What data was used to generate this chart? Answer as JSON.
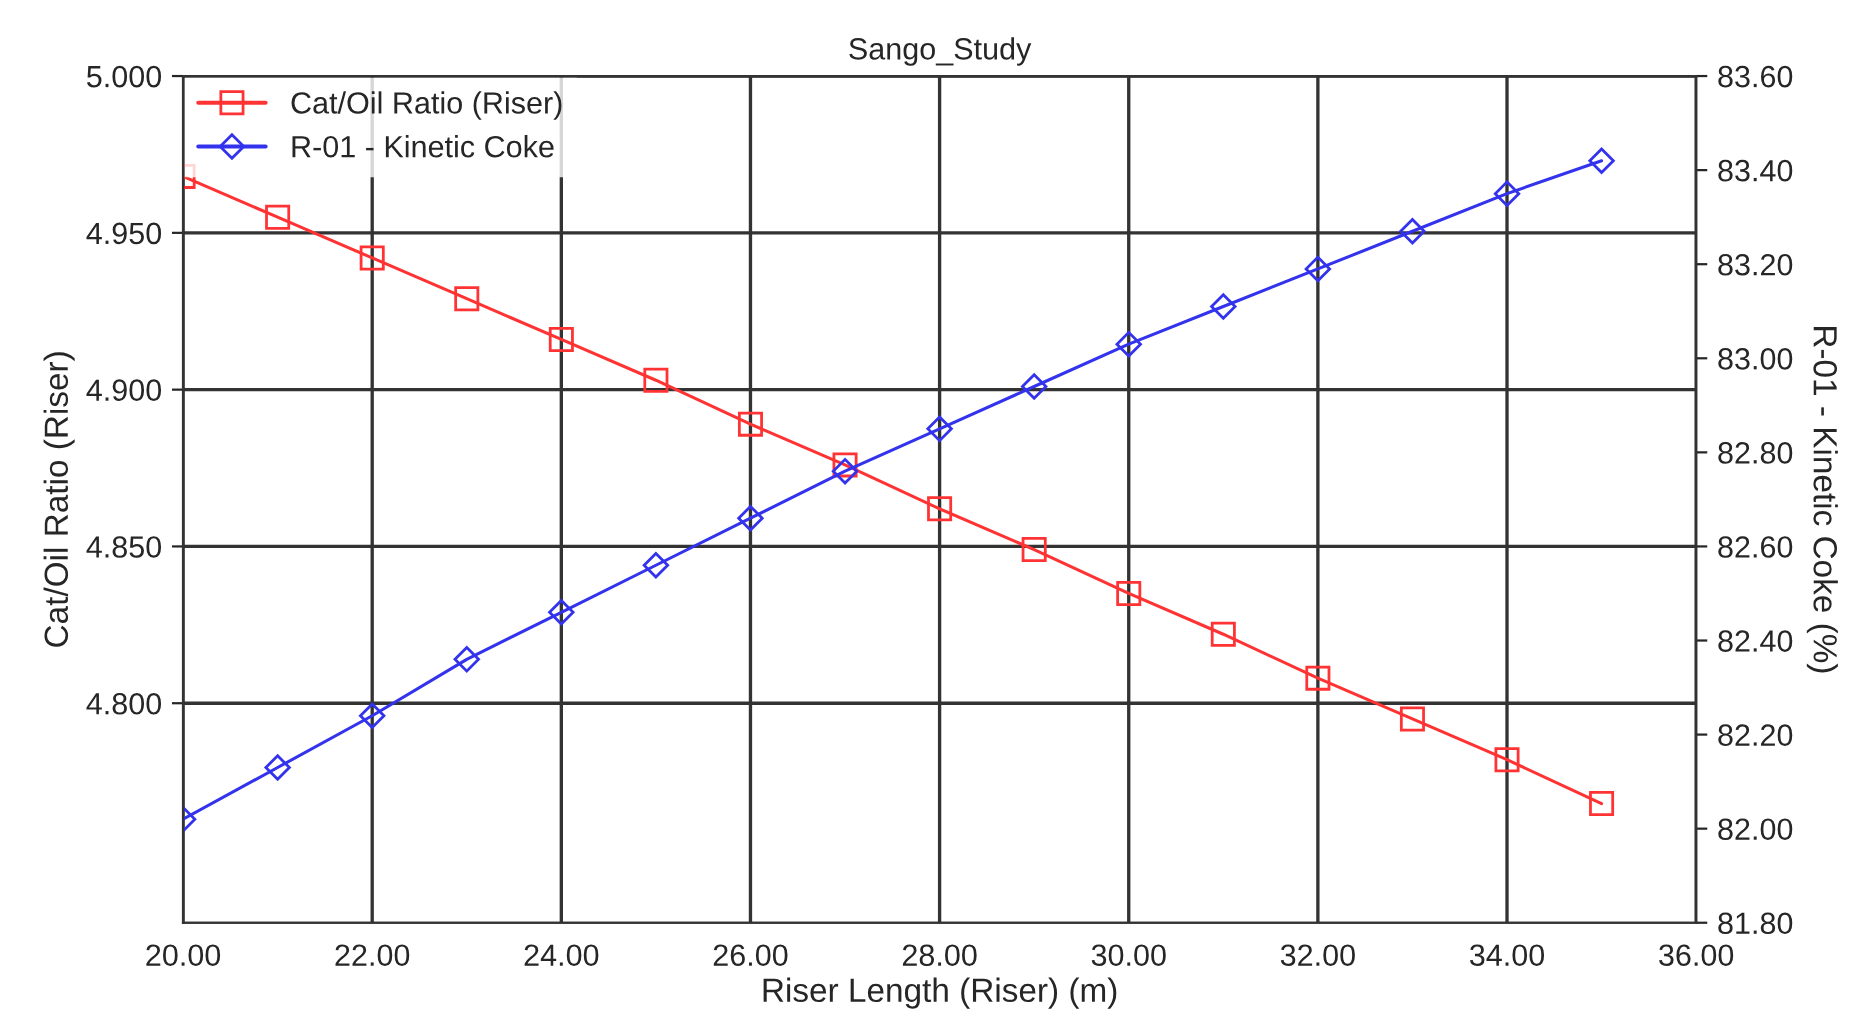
{
  "chart_data": {
    "type": "line",
    "title": "Sango_Study",
    "xlabel": "Riser Length (Riser) (m)",
    "ylabel": "Cat/Oil Ratio (Riser)",
    "y2label": "R-01 - Kinetic Coke (%)",
    "x": [
      20,
      21,
      22,
      23,
      24,
      25,
      26,
      27,
      28,
      29,
      30,
      31,
      32,
      33,
      34,
      35
    ],
    "series": [
      {
        "name": "Cat/Oil Ratio (Riser)",
        "color": "#ff3333",
        "marker": "square",
        "values": [
          4.968,
          4.955,
          4.942,
          4.929,
          4.916,
          4.903,
          4.889,
          4.876,
          4.862,
          4.849,
          4.835,
          4.822,
          4.808,
          4.795,
          4.782,
          4.768
        ]
      },
      {
        "name": "R-01 - Kinetic Coke",
        "color": "#3333ee",
        "marker": "diamond",
        "axis": "y2",
        "values": [
          82.02,
          82.13,
          82.24,
          82.36,
          82.46,
          82.56,
          82.66,
          82.76,
          82.85,
          82.94,
          83.03,
          83.11,
          83.19,
          83.27,
          83.35,
          83.42
        ]
      }
    ],
    "xlim": [
      20,
      36
    ],
    "xticks": [
      {
        "value": 20,
        "label": "20.00"
      },
      {
        "value": 22,
        "label": "22.00"
      },
      {
        "value": 24,
        "label": "24.00"
      },
      {
        "value": 26,
        "label": "26.00"
      },
      {
        "value": 28,
        "label": "28.00"
      },
      {
        "value": 30,
        "label": "30.00"
      },
      {
        "value": 32,
        "label": "32.00"
      },
      {
        "value": 34,
        "label": "34.00"
      },
      {
        "value": 36,
        "label": "36.00"
      }
    ],
    "ylim": [
      4.73,
      5.0
    ],
    "yticks": [
      {
        "value": 4.8,
        "label": "4.800"
      },
      {
        "value": 4.85,
        "label": "4.850"
      },
      {
        "value": 4.9,
        "label": "4.900"
      },
      {
        "value": 4.95,
        "label": "4.950"
      },
      {
        "value": 5.0,
        "label": "5.000"
      }
    ],
    "y2lim": [
      81.8,
      83.6
    ],
    "y2ticks": [
      {
        "value": 81.8,
        "label": "81.80"
      },
      {
        "value": 82.0,
        "label": "82.00"
      },
      {
        "value": 82.2,
        "label": "82.20"
      },
      {
        "value": 82.4,
        "label": "82.40"
      },
      {
        "value": 82.6,
        "label": "82.60"
      },
      {
        "value": 82.8,
        "label": "82.80"
      },
      {
        "value": 83.0,
        "label": "83.00"
      },
      {
        "value": 83.2,
        "label": "83.20"
      },
      {
        "value": 83.4,
        "label": "83.40"
      },
      {
        "value": 83.6,
        "label": "83.60"
      }
    ],
    "grid": true,
    "legend": "top left",
    "line_style": "solid"
  }
}
